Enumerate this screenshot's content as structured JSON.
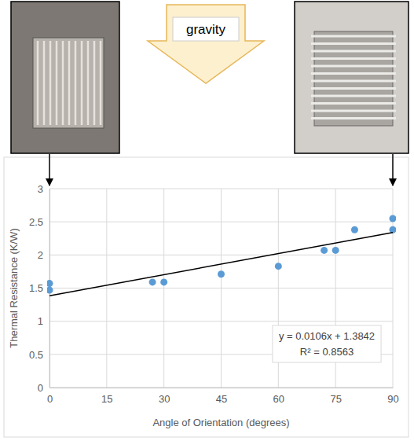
{
  "chart_data": {
    "type": "scatter",
    "x_label": "Angle of Orientation (degrees)",
    "y_label": "Thermal Resistance (K/W)",
    "series": [
      {
        "type": "scatter",
        "color": "#5b9bd5",
        "marker": "circle",
        "x": [
          0,
          0,
          27,
          30,
          45,
          60,
          72,
          75,
          80,
          90,
          90
        ],
        "values": [
          1.57,
          1.47,
          1.59,
          1.59,
          1.71,
          1.83,
          2.07,
          2.07,
          2.38,
          2.55,
          2.38
        ]
      },
      {
        "type": "line",
        "color": "#000000",
        "line_style": "solid",
        "x": [
          0,
          90
        ],
        "values": [
          1.3842,
          2.3382
        ]
      }
    ],
    "annotations": [
      "y = 0.0106x + 1.3842",
      "R² = 0.8563",
      "gravity"
    ],
    "xlim": [
      0,
      90
    ],
    "xticks": [
      0,
      15,
      30,
      45,
      60,
      75,
      90
    ],
    "ylim": [
      0,
      3
    ],
    "yticks": [
      0,
      0.5,
      1,
      1.5,
      2,
      2.5,
      3
    ],
    "grid": true
  }
}
